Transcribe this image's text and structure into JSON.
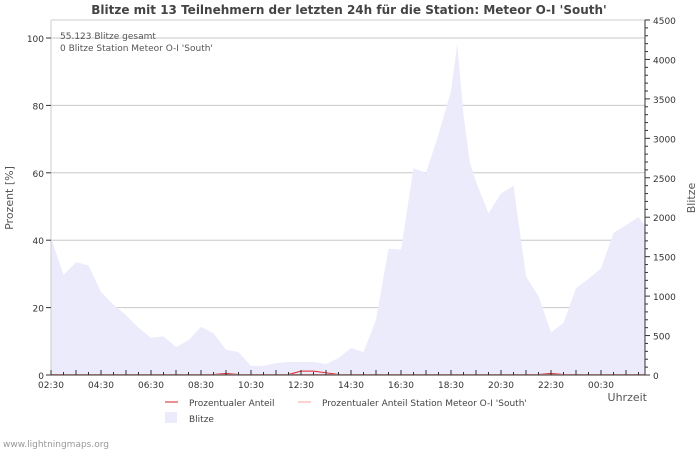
{
  "chart_data": {
    "type": "area",
    "title": "Blitze mit 13 Teilnehmern der letzten 24h für die Station: Meteor O-I  'South'",
    "ylabel": "Prozent   [%]",
    "y2label": "Blitze",
    "xlabel": "Uhrzeit",
    "ylim": [
      0,
      100
    ],
    "y2lim": [
      0,
      4500
    ],
    "yticks": [
      "0",
      "20",
      "40",
      "60",
      "80",
      "100"
    ],
    "y2ticks": [
      "0",
      "500",
      "1000",
      "1500",
      "2000",
      "2500",
      "3000",
      "3500",
      "4000",
      "4500"
    ],
    "xticks": [
      "02:30",
      "04:30",
      "06:30",
      "08:30",
      "10:30",
      "12:30",
      "14:30",
      "16:30",
      "18:30",
      "20:30",
      "22:30",
      "00:30"
    ],
    "annotations": [
      "55.123 Blitze gesamt",
      "0 Blitze Station Meteor O-I  'South'"
    ],
    "x_hours_from_0230": [
      0,
      0.5,
      1,
      1.5,
      2,
      2.5,
      3,
      3.5,
      4,
      4.5,
      5,
      5.5,
      6,
      6.5,
      7,
      7.5,
      8,
      8.5,
      9,
      9.5,
      10,
      10.5,
      11,
      11.5,
      12,
      12.5,
      13,
      13.5,
      14,
      14.5,
      15,
      15.5,
      16,
      16.25,
      16.5,
      16.75,
      17,
      17.5,
      18,
      18.5,
      19,
      19.5,
      20,
      20.5,
      21,
      21.5,
      22,
      22.5,
      23,
      23.5,
      23.75
    ],
    "series": [
      {
        "name": "Blitze",
        "axis": "right",
        "color": "#ebebfc",
        "values": [
          1740,
          1270,
          1430,
          1390,
          1050,
          890,
          760,
          600,
          470,
          490,
          355,
          440,
          610,
          530,
          320,
          290,
          115,
          115,
          150,
          165,
          165,
          165,
          140,
          215,
          340,
          290,
          700,
          1600,
          1590,
          2620,
          2560,
          3050,
          3600,
          4200,
          3300,
          2700,
          2450,
          2050,
          2300,
          2400,
          1250,
          1000,
          540,
          660,
          1100,
          1220,
          1350,
          1800,
          1900,
          2000,
          1900
        ]
      },
      {
        "name": "Prozentualer Anteil",
        "axis": "left",
        "color": "#dd2222",
        "values": [
          0,
          0,
          0,
          0,
          0,
          0,
          0,
          0,
          0,
          0,
          0,
          0,
          0,
          0,
          0.3,
          0,
          0,
          0,
          0,
          0,
          1,
          1,
          0.5,
          0,
          0,
          0,
          0,
          0,
          0,
          0,
          0,
          0,
          0,
          0,
          0,
          0,
          0,
          0,
          0,
          0,
          0,
          0,
          0.3,
          0,
          0,
          0,
          0,
          0,
          0,
          0,
          0
        ]
      },
      {
        "name": "Prozentualer Anteil Station Meteor O-I  'South'",
        "axis": "left",
        "color": "#f4a0a0",
        "values": [
          0,
          0,
          0,
          0,
          0,
          0,
          0,
          0,
          0,
          0,
          0,
          0,
          0,
          0,
          0,
          0,
          0,
          0,
          0,
          0,
          0,
          0,
          0,
          0,
          0,
          0,
          0,
          0,
          0,
          0,
          0,
          0,
          0,
          0,
          0,
          0,
          0,
          0,
          0,
          0,
          0,
          0,
          0,
          0,
          0,
          0,
          0,
          0,
          0,
          0,
          0
        ]
      }
    ],
    "legend": [
      "Prozentualer Anteil",
      "Prozentualer Anteil Station Meteor O-I  'South'",
      "Blitze"
    ],
    "legend_position": "bottom",
    "grid": true
  },
  "footer": "www.lightningmaps.org"
}
